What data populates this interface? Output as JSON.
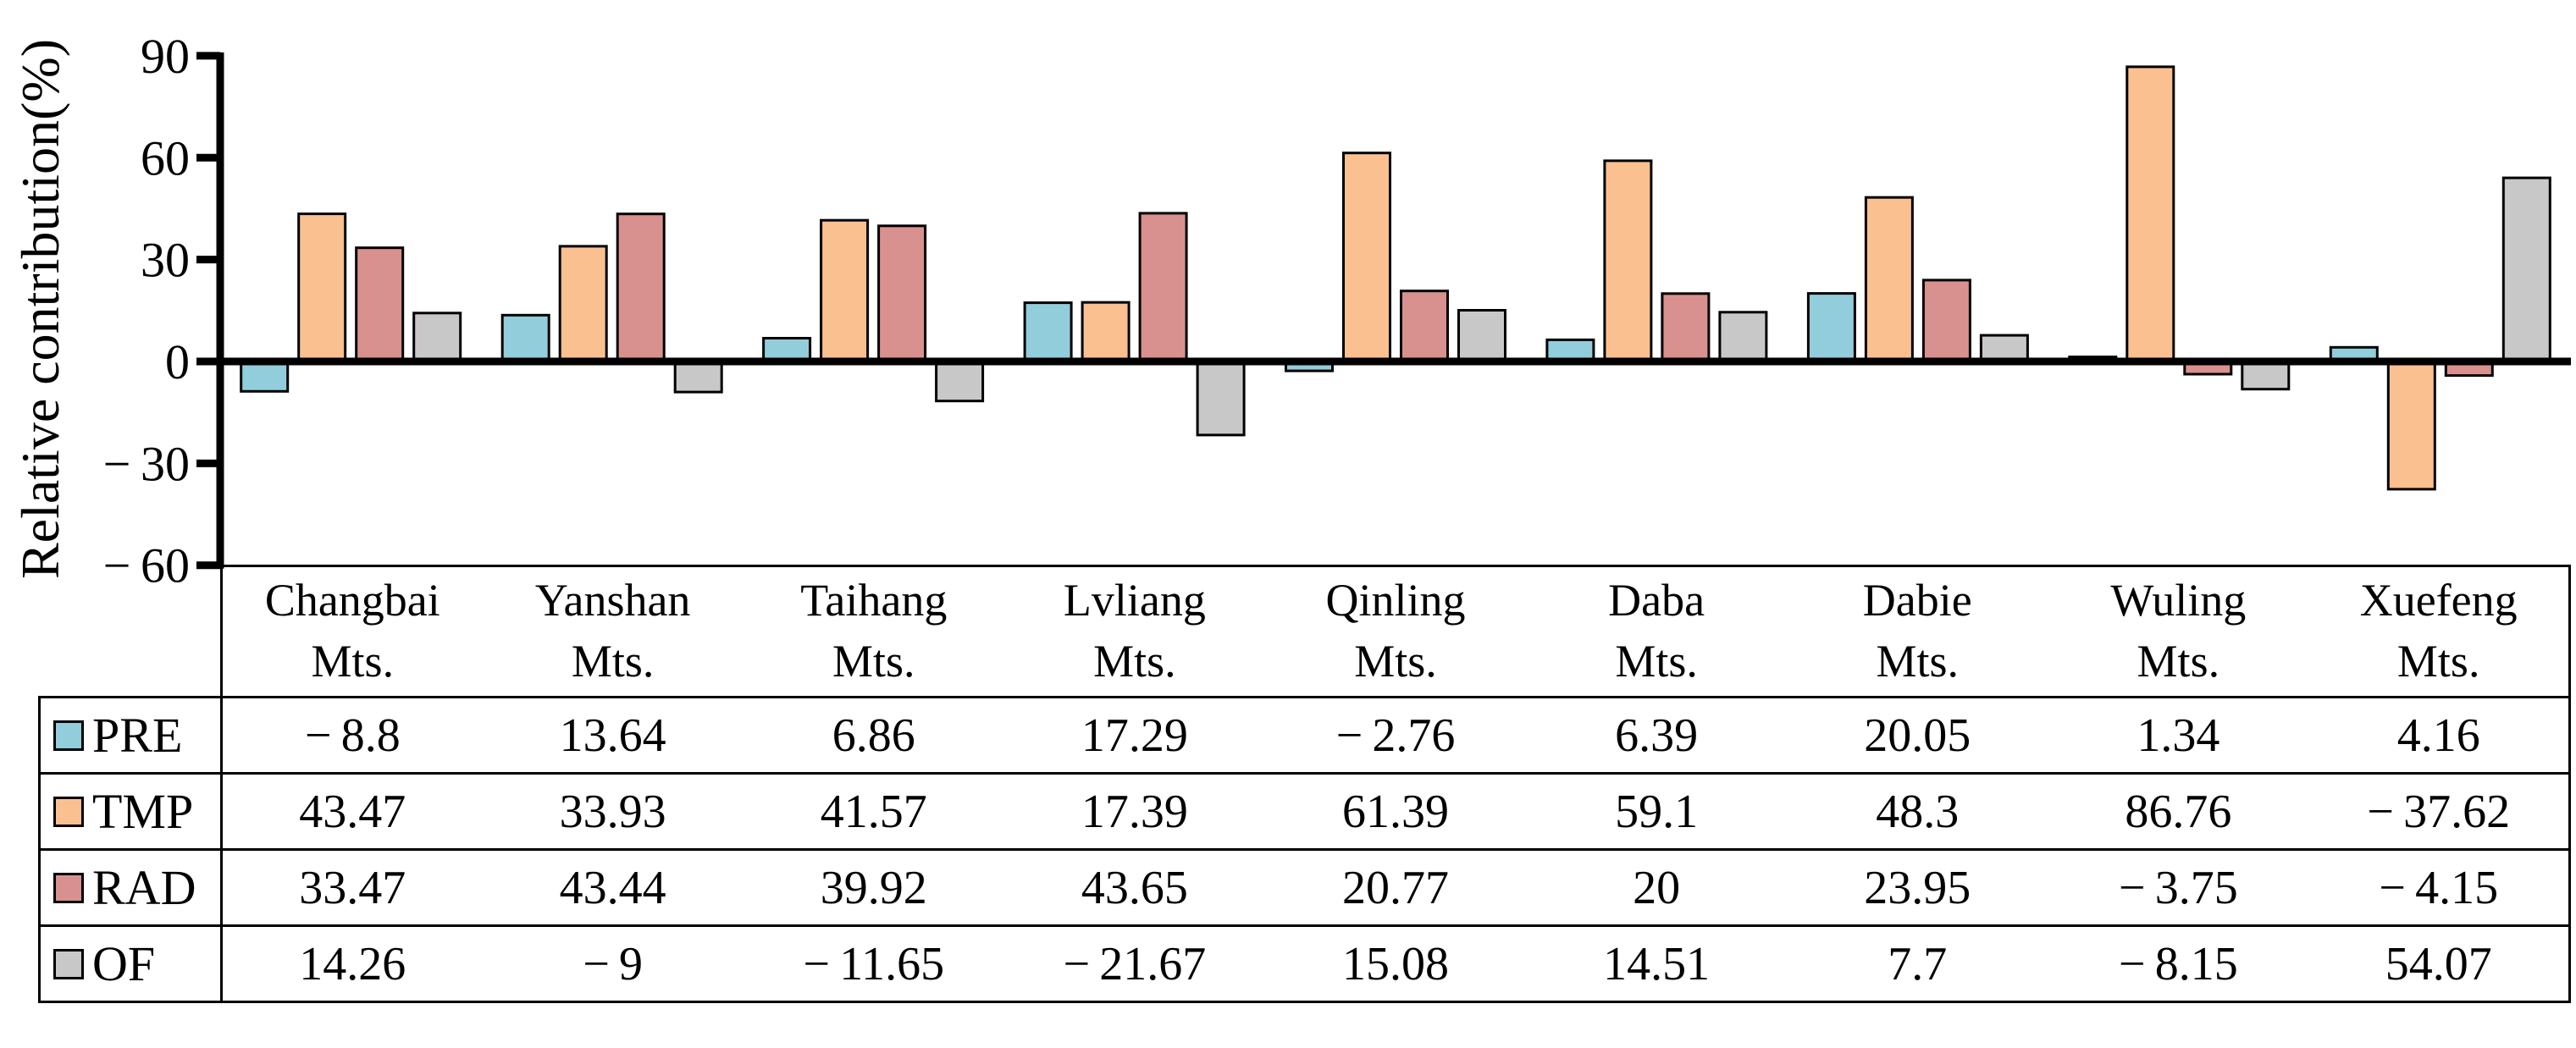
{
  "chart_data": {
    "type": "bar",
    "title": "",
    "ylabel": "Relative contribution(%)",
    "xlabel": "",
    "categories": [
      "Changbai",
      "Yanshan",
      "Taihang",
      "Lvliang",
      "Qinling",
      "Daba",
      "Dabie",
      "Wuling",
      "Xuefeng"
    ],
    "category_suffix": "Mts.",
    "series": [
      {
        "name": "PRE",
        "color": "#92CDDC",
        "values": [
          -8.8,
          13.64,
          6.86,
          17.29,
          -2.76,
          6.39,
          20.05,
          1.34,
          4.16
        ]
      },
      {
        "name": "TMP",
        "color": "#FAC090",
        "values": [
          43.47,
          33.93,
          41.57,
          17.39,
          61.39,
          59.1,
          48.3,
          86.76,
          -37.62
        ]
      },
      {
        "name": "RAD",
        "color": "#D8918F",
        "values": [
          33.47,
          43.44,
          39.92,
          43.65,
          20.77,
          20,
          23.95,
          -3.75,
          -4.15
        ]
      },
      {
        "name": "OF",
        "color": "#C8C8C8",
        "values": [
          14.26,
          -9,
          -11.65,
          -21.67,
          15.08,
          14.51,
          7.7,
          -8.15,
          54.07
        ]
      }
    ],
    "yticks": [
      90,
      60,
      30,
      0,
      -30,
      -60
    ],
    "ylim": [
      -60,
      90
    ],
    "grid": false,
    "legend_position": "table-rows",
    "bar_outline_color": "#000000",
    "axis_color": "#000000"
  }
}
